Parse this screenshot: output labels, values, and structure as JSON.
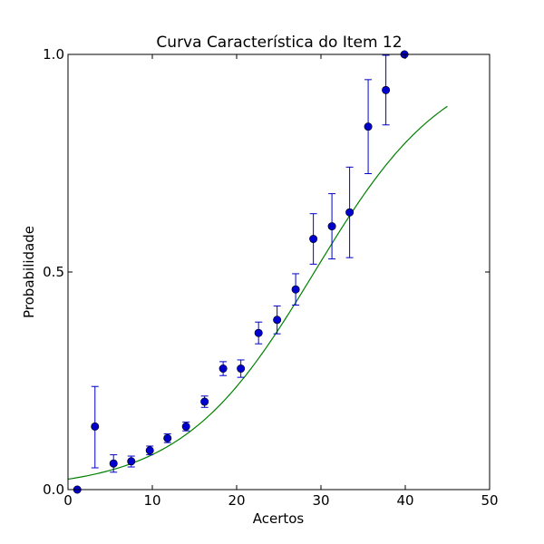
{
  "chart_data": {
    "type": "scatter",
    "title": "Curva Característica do Item 12",
    "xlabel": "Acertos",
    "ylabel": "Probabilidade",
    "xlim": [
      0,
      50
    ],
    "ylim": [
      0.0,
      1.0
    ],
    "xticks": [
      0,
      10,
      20,
      30,
      40,
      50
    ],
    "xtick_labels": [
      "0",
      "10",
      "20",
      "30",
      "40",
      "50"
    ],
    "yticks": [
      0.0,
      0.5,
      1.0
    ],
    "ytick_labels": [
      "0.0",
      "0.5",
      "1.0"
    ],
    "grid": false,
    "points": [
      {
        "x": 1.1,
        "y": 0.0,
        "err_low": 0.0,
        "err_high": 0.0
      },
      {
        "x": 3.2,
        "y": 0.145,
        "err_low": 0.05,
        "err_high": 0.237
      },
      {
        "x": 5.4,
        "y": 0.06,
        "err_low": 0.04,
        "err_high": 0.08
      },
      {
        "x": 7.5,
        "y": 0.065,
        "err_low": 0.052,
        "err_high": 0.077
      },
      {
        "x": 9.7,
        "y": 0.09,
        "err_low": 0.08,
        "err_high": 0.1
      },
      {
        "x": 11.8,
        "y": 0.118,
        "err_low": 0.108,
        "err_high": 0.128
      },
      {
        "x": 14.0,
        "y": 0.145,
        "err_low": 0.135,
        "err_high": 0.155
      },
      {
        "x": 16.2,
        "y": 0.202,
        "err_low": 0.189,
        "err_high": 0.215
      },
      {
        "x": 18.4,
        "y": 0.278,
        "err_low": 0.262,
        "err_high": 0.294
      },
      {
        "x": 20.5,
        "y": 0.278,
        "err_low": 0.258,
        "err_high": 0.298
      },
      {
        "x": 22.6,
        "y": 0.36,
        "err_low": 0.335,
        "err_high": 0.385
      },
      {
        "x": 24.8,
        "y": 0.39,
        "err_low": 0.358,
        "err_high": 0.422
      },
      {
        "x": 27.0,
        "y": 0.46,
        "err_low": 0.424,
        "err_high": 0.496
      },
      {
        "x": 29.1,
        "y": 0.576,
        "err_low": 0.518,
        "err_high": 0.634
      },
      {
        "x": 31.3,
        "y": 0.605,
        "err_low": 0.53,
        "err_high": 0.68
      },
      {
        "x": 33.4,
        "y": 0.637,
        "err_low": 0.533,
        "err_high": 0.741
      },
      {
        "x": 35.6,
        "y": 0.834,
        "err_low": 0.726,
        "err_high": 0.942
      },
      {
        "x": 37.7,
        "y": 0.918,
        "err_low": 0.838,
        "err_high": 0.998
      },
      {
        "x": 39.9,
        "y": 1.0,
        "err_low": 1.0,
        "err_high": 1.0
      }
    ],
    "curve": {
      "type": "logistic",
      "x_range": [
        0,
        45
      ],
      "x": [
        0,
        5,
        10,
        15,
        20,
        25,
        30,
        35,
        40,
        45
      ],
      "y": [
        0.027,
        0.047,
        0.081,
        0.137,
        0.224,
        0.346,
        0.495,
        0.648,
        0.783,
        0.912
      ]
    },
    "colors": {
      "points": "#0000cc",
      "errorbars": "#0000cc",
      "curve": "#008000",
      "axes": "#000000",
      "background": "#ffffff"
    }
  }
}
